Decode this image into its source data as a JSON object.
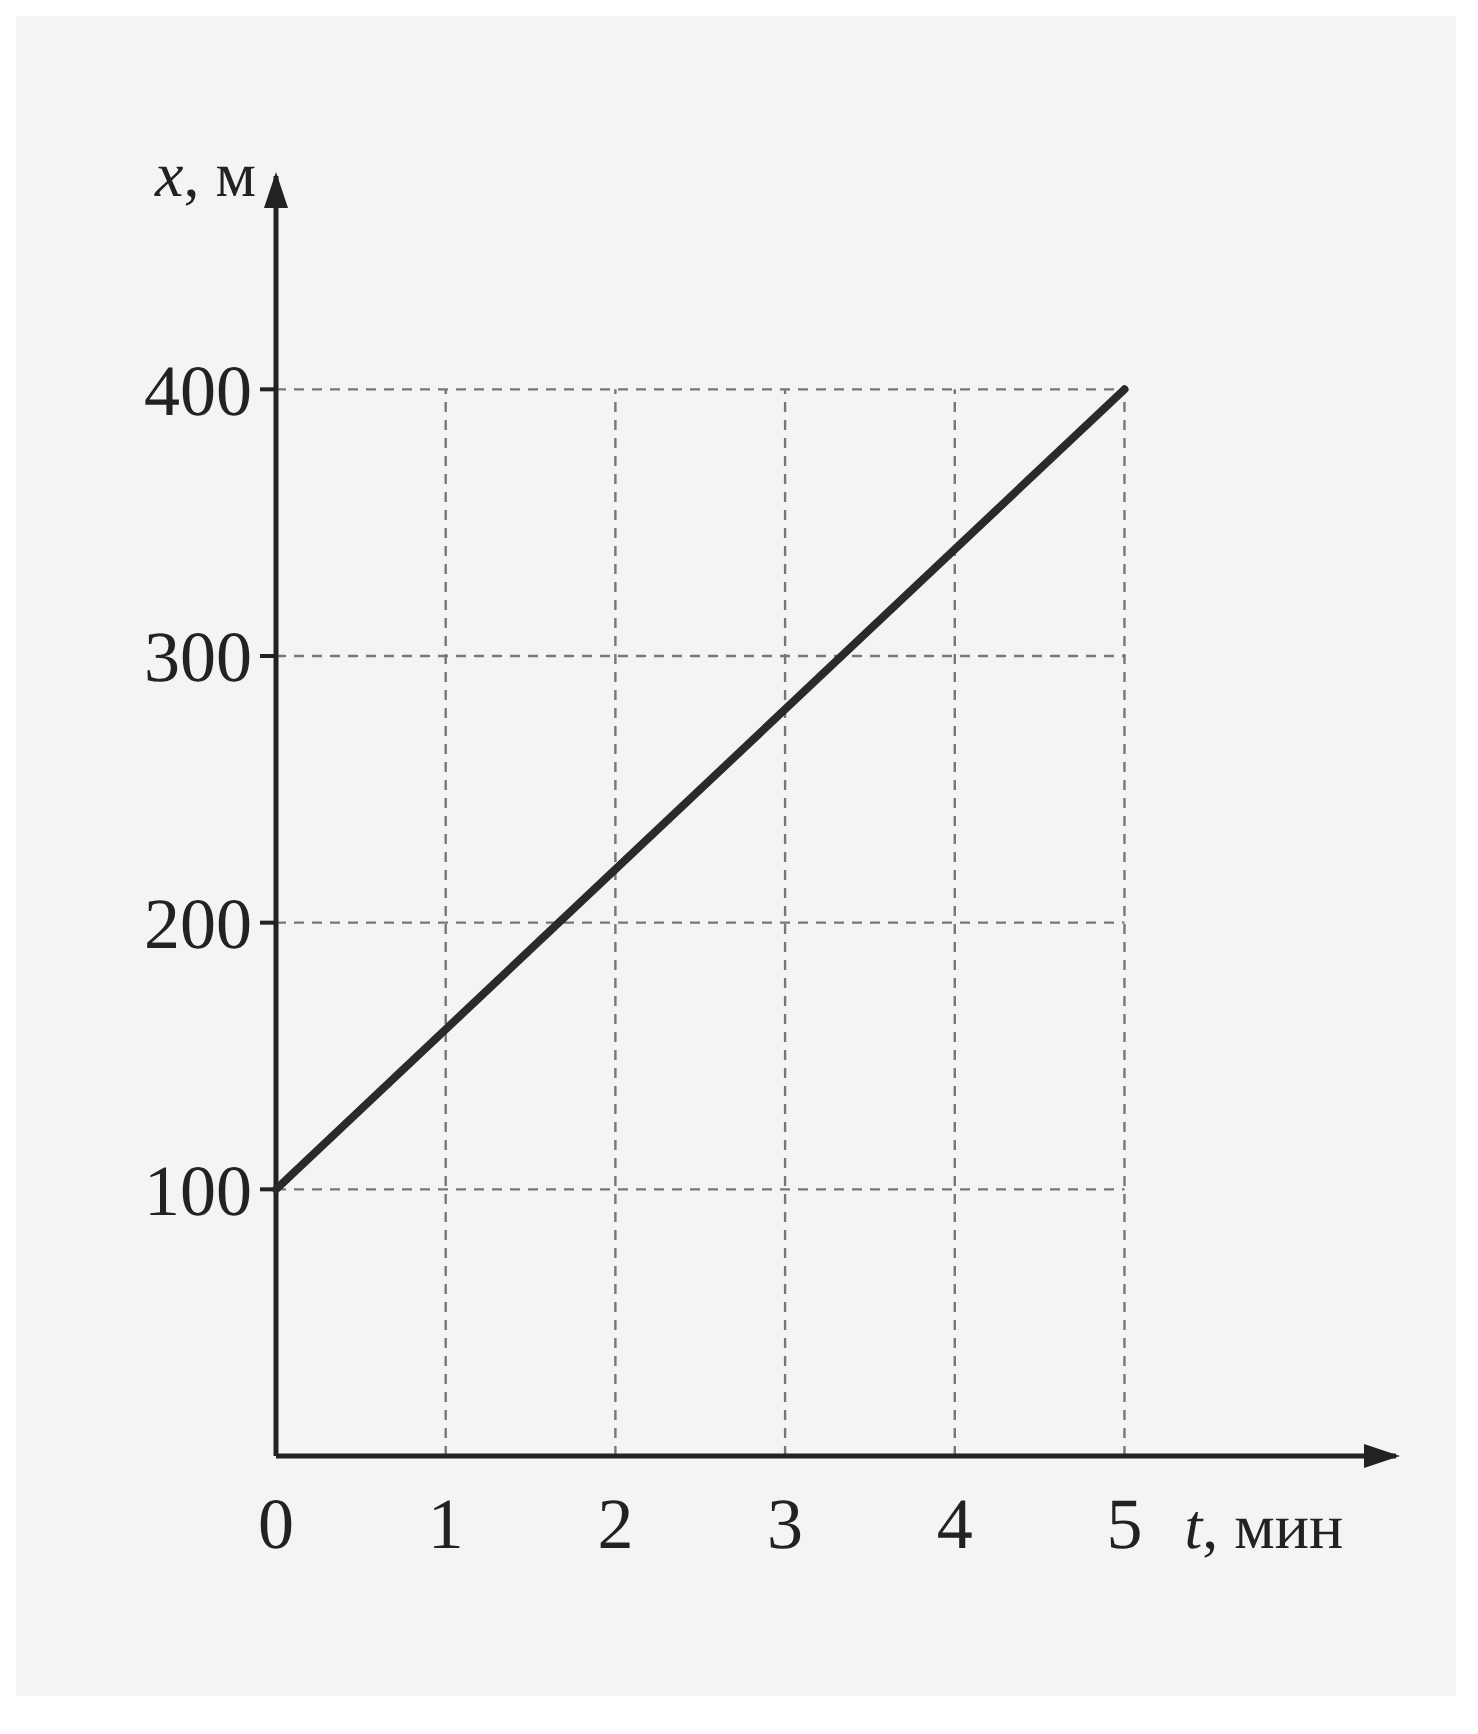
{
  "chart_data": {
    "type": "line",
    "xlabel": "t, мин",
    "ylabel": "x, м",
    "x": [
      0,
      5
    ],
    "series": [
      {
        "color": "#2a2a2a",
        "values": [
          100,
          400
        ]
      }
    ],
    "xlim": [
      0,
      6.6
    ],
    "ylim": [
      0,
      480
    ],
    "xticks": [
      0,
      1,
      2,
      3,
      4,
      5
    ],
    "yticks": [
      100,
      200,
      300,
      400
    ],
    "grid": true,
    "line_style": "solid",
    "marker": "none"
  }
}
